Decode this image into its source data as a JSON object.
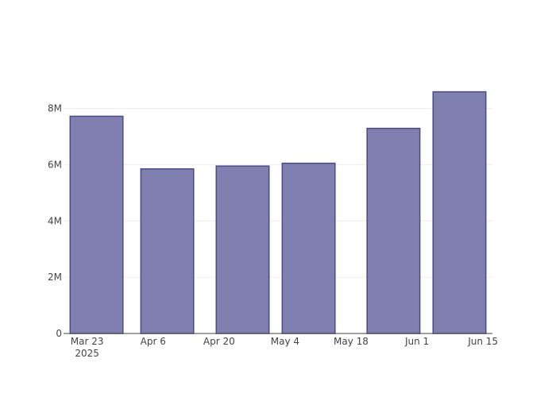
{
  "chart_data": {
    "type": "bar",
    "x": [
      "2025-03-25",
      "2025-04-09",
      "2025-04-25",
      "2025-05-09",
      "2025-05-27",
      "2025-06-10"
    ],
    "values": [
      7720000,
      5850000,
      5950000,
      6050000,
      7290000,
      8590000
    ],
    "color": "#7f7fb0",
    "edge_color": "#4a4a85",
    "bar_width_days": 11.2,
    "xlim": [
      "2025-03-18",
      "2025-06-17"
    ],
    "xticks": [
      {
        "value": "2025-03-23",
        "label": "Mar 23\n2025"
      },
      {
        "value": "2025-04-06",
        "label": "Apr 6"
      },
      {
        "value": "2025-04-20",
        "label": "Apr 20"
      },
      {
        "value": "2025-05-04",
        "label": "May 4"
      },
      {
        "value": "2025-05-18",
        "label": "May 18"
      },
      {
        "value": "2025-06-01",
        "label": "Jun 1"
      },
      {
        "value": "2025-06-15",
        "label": "Jun 15"
      }
    ],
    "ylim": [
      0,
      9030000
    ],
    "yticks": [
      0,
      {
        "value": 2000000,
        "label": "2M"
      },
      {
        "value": 4000000,
        "label": "4M"
      },
      {
        "value": 6000000,
        "label": "6M"
      },
      {
        "value": 8000000,
        "label": "8M"
      }
    ],
    "grid": true
  }
}
